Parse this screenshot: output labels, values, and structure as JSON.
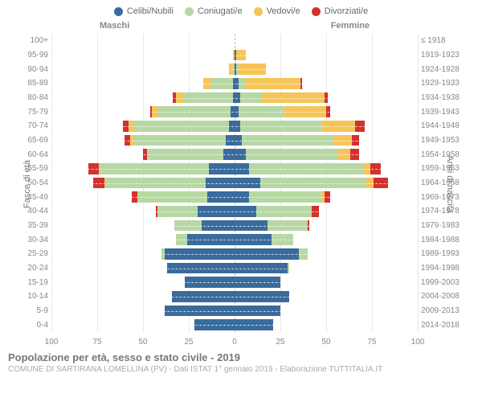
{
  "legend": [
    {
      "label": "Celibi/Nubili",
      "color": "#3a6b9c"
    },
    {
      "label": "Coniugati/e",
      "color": "#b7d8a4"
    },
    {
      "label": "Vedovi/e",
      "color": "#f6c55a"
    },
    {
      "label": "Divorziati/e",
      "color": "#d2322d"
    }
  ],
  "gender": {
    "male": "Maschi",
    "female": "Femmine"
  },
  "axis": {
    "left_title": "Fasce di età",
    "right_title": "Anni di nascita",
    "xlim": 100,
    "xticks": [
      100,
      75,
      50,
      25,
      0,
      25,
      50,
      75,
      100
    ]
  },
  "colors": {
    "single": "#3a6b9c",
    "married": "#b7d8a4",
    "widowed": "#f6c55a",
    "divorced": "#d2322d",
    "grid": "#e8e8e8",
    "center": "#bdbdbd",
    "hgrid": "#ffffff"
  },
  "rows": [
    {
      "age": "100+",
      "year": "≤ 1918",
      "m": [
        0,
        0,
        0,
        0
      ],
      "f": [
        0,
        0,
        0,
        0
      ]
    },
    {
      "age": "95-99",
      "year": "1919-1923",
      "m": [
        0,
        0,
        1,
        0
      ],
      "f": [
        1,
        0,
        5,
        0
      ]
    },
    {
      "age": "90-94",
      "year": "1924-1928",
      "m": [
        0,
        1,
        2,
        0
      ],
      "f": [
        1,
        1,
        15,
        0
      ]
    },
    {
      "age": "85-89",
      "year": "1929-1933",
      "m": [
        1,
        12,
        4,
        0
      ],
      "f": [
        2,
        4,
        30,
        1
      ]
    },
    {
      "age": "80-84",
      "year": "1934-1938",
      "m": [
        1,
        27,
        4,
        2
      ],
      "f": [
        3,
        12,
        34,
        2
      ]
    },
    {
      "age": "75-79",
      "year": "1939-1943",
      "m": [
        2,
        40,
        3,
        1
      ],
      "f": [
        2,
        25,
        23,
        2
      ]
    },
    {
      "age": "70-74",
      "year": "1944-1948",
      "m": [
        3,
        52,
        3,
        3
      ],
      "f": [
        3,
        45,
        18,
        5
      ]
    },
    {
      "age": "65-69",
      "year": "1949-1953",
      "m": [
        5,
        50,
        2,
        3
      ],
      "f": [
        4,
        50,
        10,
        4
      ]
    },
    {
      "age": "60-64",
      "year": "1954-1958",
      "m": [
        6,
        42,
        0,
        2
      ],
      "f": [
        6,
        50,
        7,
        5
      ]
    },
    {
      "age": "55-59",
      "year": "1959-1963",
      "m": [
        14,
        60,
        0,
        6
      ],
      "f": [
        8,
        62,
        4,
        6
      ]
    },
    {
      "age": "50-54",
      "year": "1964-1968",
      "m": [
        16,
        54,
        1,
        6
      ],
      "f": [
        14,
        58,
        4,
        8
      ]
    },
    {
      "age": "45-49",
      "year": "1969-1973",
      "m": [
        15,
        38,
        0,
        3
      ],
      "f": [
        8,
        40,
        1,
        3
      ]
    },
    {
      "age": "40-44",
      "year": "1974-1978",
      "m": [
        20,
        22,
        0,
        1
      ],
      "f": [
        12,
        30,
        0,
        4
      ]
    },
    {
      "age": "35-39",
      "year": "1979-1983",
      "m": [
        18,
        15,
        0,
        0
      ],
      "f": [
        18,
        22,
        0,
        1
      ]
    },
    {
      "age": "30-34",
      "year": "1984-1988",
      "m": [
        26,
        6,
        0,
        0
      ],
      "f": [
        20,
        12,
        0,
        0
      ]
    },
    {
      "age": "25-29",
      "year": "1989-1993",
      "m": [
        38,
        2,
        0,
        0
      ],
      "f": [
        35,
        5,
        0,
        0
      ]
    },
    {
      "age": "20-24",
      "year": "1994-1998",
      "m": [
        37,
        0,
        0,
        0
      ],
      "f": [
        29,
        1,
        0,
        0
      ]
    },
    {
      "age": "15-19",
      "year": "1999-2003",
      "m": [
        27,
        0,
        0,
        0
      ],
      "f": [
        25,
        0,
        0,
        0
      ]
    },
    {
      "age": "10-14",
      "year": "2004-2008",
      "m": [
        34,
        0,
        0,
        0
      ],
      "f": [
        30,
        0,
        0,
        0
      ]
    },
    {
      "age": "5-9",
      "year": "2009-2013",
      "m": [
        38,
        0,
        0,
        0
      ],
      "f": [
        25,
        0,
        0,
        0
      ]
    },
    {
      "age": "0-4",
      "year": "2014-2018",
      "m": [
        22,
        0,
        0,
        0
      ],
      "f": [
        21,
        0,
        0,
        0
      ]
    }
  ],
  "footer": {
    "title": "Popolazione per età, sesso e stato civile - 2019",
    "subtitle": "COMUNE DI SARTIRANA LOMELLINA (PV) - Dati ISTAT 1° gennaio 2019 - Elaborazione TUTTITALIA.IT"
  }
}
